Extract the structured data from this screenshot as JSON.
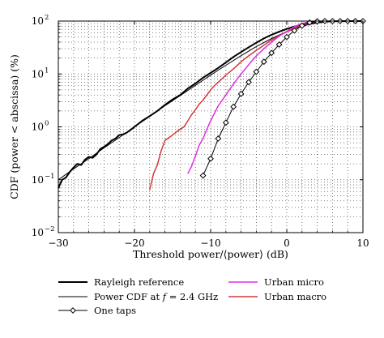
{
  "chart_data": {
    "type": "line",
    "xlabel": "Threshold power/⟨power⟩ (dB)",
    "ylabel": "CDF (power < abscissa) (%)",
    "xlim": [
      -30,
      10
    ],
    "ylim": [
      0.01,
      100
    ],
    "yscale": "log",
    "grid": "dotted",
    "legend_placement": "below",
    "x_ticks": [
      "−30",
      "−20",
      "−10",
      "0",
      "10"
    ],
    "y_ticks": [
      {
        "value": 0.01,
        "base": "10",
        "exp": "−2"
      },
      {
        "value": 0.1,
        "base": "10",
        "exp": "−1"
      },
      {
        "value": 1,
        "base": "10",
        "exp": "0"
      },
      {
        "value": 10,
        "base": "10",
        "exp": "1"
      },
      {
        "value": 100,
        "base": "10",
        "exp": "2"
      }
    ],
    "series": [
      {
        "name": "Rayleigh reference",
        "color": "#000000",
        "width": 2.0,
        "marker": "none",
        "x": [
          -30,
          -29.5,
          -29,
          -28.5,
          -28,
          -27.5,
          -27,
          -26.5,
          -26,
          -25.5,
          -25,
          -24.5,
          -24,
          -23.5,
          -23,
          -22.5,
          -22,
          -21.5,
          -21,
          -20.5,
          -20,
          -19,
          -18,
          -17,
          -16,
          -15,
          -14,
          -13,
          -12,
          -11,
          -10,
          -9,
          -8,
          -7,
          -6,
          -5,
          -4,
          -3,
          -2,
          -1,
          0,
          1,
          2,
          3,
          4,
          5,
          6,
          7,
          8,
          9,
          10
        ],
        "y": [
          0.07,
          0.1,
          0.11,
          0.14,
          0.17,
          0.2,
          0.19,
          0.24,
          0.27,
          0.26,
          0.3,
          0.38,
          0.42,
          0.47,
          0.55,
          0.6,
          0.7,
          0.72,
          0.78,
          0.88,
          1.0,
          1.3,
          1.6,
          2.0,
          2.6,
          3.3,
          4.0,
          5.3,
          6.6,
          8.5,
          10.5,
          13,
          16.5,
          21,
          26,
          32,
          39,
          47,
          55,
          63,
          71,
          79,
          86,
          92,
          96,
          98.5,
          99.4,
          99.8,
          100,
          100,
          100
        ]
      },
      {
        "name": "Power CDF at f = 2.4 GHz",
        "color": "#000000",
        "width": 1.0,
        "marker": "none",
        "x": [
          -30,
          -28,
          -26,
          -24,
          -22,
          -20,
          -18,
          -16,
          -14,
          -12,
          -10,
          -8,
          -6,
          -4,
          -2,
          0,
          1,
          2,
          3,
          4,
          5,
          6,
          8,
          10
        ],
        "y": [
          0.1,
          0.16,
          0.25,
          0.4,
          0.63,
          1.0,
          1.57,
          2.5,
          3.9,
          6.1,
          9.5,
          14.6,
          22.2,
          33.0,
          46.9,
          63.2,
          71.9,
          79.8,
          86.6,
          92.0,
          95.8,
          98.2,
          99.9,
          100
        ]
      },
      {
        "name": "One taps",
        "color": "#000000",
        "width": 1.0,
        "marker": "diamond",
        "x": [
          -11,
          -10,
          -9,
          -8,
          -7,
          -6,
          -5,
          -4,
          -3,
          -2,
          -1,
          0,
          1,
          2,
          3,
          4,
          5,
          6,
          7,
          8,
          9,
          10
        ],
        "y": [
          0.12,
          0.25,
          0.6,
          1.2,
          2.4,
          4.2,
          7.0,
          11,
          17,
          25,
          36,
          50,
          66,
          82,
          94,
          99,
          100,
          100,
          100,
          100,
          100,
          100
        ]
      },
      {
        "name": "Urban micro",
        "color": "#e22ee2",
        "width": 1.5,
        "marker": "none",
        "x": [
          -13,
          -12.5,
          -12,
          -11.5,
          -11,
          -10.5,
          -10,
          -9.5,
          -9,
          -8,
          -7,
          -6,
          -5,
          -4,
          -3,
          -2,
          -1,
          0,
          1,
          2,
          3,
          4,
          5
        ],
        "y": [
          0.13,
          0.18,
          0.28,
          0.45,
          0.6,
          0.9,
          1.3,
          1.8,
          2.5,
          4.0,
          6.5,
          10,
          15,
          22,
          30,
          40,
          52,
          64,
          78,
          90,
          97,
          99.5,
          100
        ]
      },
      {
        "name": "Urban macro",
        "color": "#d03a3a",
        "width": 1.5,
        "marker": "none",
        "x": [
          -18,
          -17.5,
          -17,
          -16.5,
          -16,
          -15.5,
          -15,
          -14.5,
          -14,
          -13.5,
          -13,
          -12.5,
          -12,
          -11.5,
          -11,
          -10.5,
          -10,
          -9.5,
          -9,
          -8,
          -7,
          -6,
          -5,
          -4,
          -3,
          -2,
          -1,
          0,
          1,
          2,
          3,
          4
        ],
        "y": [
          0.065,
          0.13,
          0.19,
          0.35,
          0.55,
          0.62,
          0.7,
          0.8,
          0.9,
          1.0,
          1.3,
          1.7,
          2.1,
          2.7,
          3.2,
          4.0,
          5.0,
          6.0,
          7.0,
          9.5,
          12.5,
          17,
          22,
          28,
          35,
          44,
          53,
          62,
          73,
          84,
          93,
          98
        ]
      }
    ],
    "legend": [
      {
        "label": "Rayleigh reference",
        "series": 0
      },
      {
        "label": "Power CDF at f = 2.4 GHz",
        "label_parts": [
          "Power CDF at ",
          "f",
          " = 2.4 GHz"
        ],
        "series": 1
      },
      {
        "label": "One taps",
        "series": 2
      },
      {
        "label": "Urban micro",
        "series": 3
      },
      {
        "label": "Urban macro",
        "series": 4
      }
    ]
  }
}
